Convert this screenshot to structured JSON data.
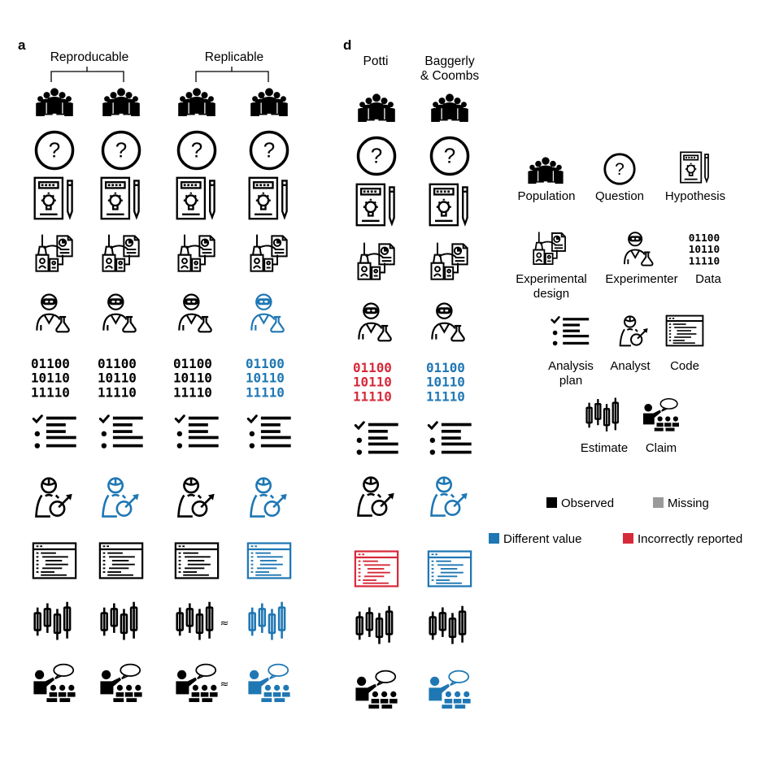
{
  "colors": {
    "observed": "#000000",
    "missing": "#9a9a9a",
    "different": "#1f77b4",
    "incorrect": "#d62a3a"
  },
  "panel_a": {
    "letter": "a",
    "group_left": "Reproducable",
    "group_right": "Replicable",
    "columns": [
      [
        "observed",
        "observed",
        "observed",
        "observed",
        "observed",
        "observed",
        "observed",
        "observed",
        "observed",
        "observed",
        "observed"
      ],
      [
        "observed",
        "observed",
        "observed",
        "observed",
        "observed",
        "observed",
        "observed",
        "different",
        "observed",
        "observed",
        "observed"
      ],
      [
        "observed",
        "observed",
        "observed",
        "observed",
        "observed",
        "observed",
        "observed",
        "observed",
        "observed",
        "observed",
        "observed"
      ],
      [
        "observed",
        "observed",
        "observed",
        "observed",
        "different",
        "different",
        "observed",
        "different",
        "different",
        "different",
        "different"
      ]
    ],
    "approx_rows": [
      9,
      10
    ],
    "approx_symbol": "≈"
  },
  "panel_d": {
    "letter": "d",
    "col1_header": "Potti",
    "col2_header_line1": "Baggerly",
    "col2_header_line2": "& Coombs",
    "columns": [
      [
        "observed",
        "observed",
        "observed",
        "observed",
        "observed",
        "incorrect",
        "observed",
        "observed",
        "incorrect",
        "observed",
        "observed"
      ],
      [
        "observed",
        "observed",
        "observed",
        "observed",
        "observed",
        "different",
        "observed",
        "different",
        "different",
        "observed",
        "different"
      ]
    ]
  },
  "icon_rows": [
    "population",
    "question",
    "hypothesis",
    "experimental-design",
    "experimenter",
    "data",
    "analysis-plan",
    "analyst",
    "code",
    "estimate",
    "claim"
  ],
  "icon_legend": {
    "population": "Population",
    "question": "Question",
    "hypothesis": "Hypothesis",
    "experimental_design_line1": "Experimental",
    "experimental_design_line2": "design",
    "experimenter": "Experimenter",
    "data": "Data",
    "analysis_plan_line1": "Analysis",
    "analysis_plan_line2": "plan",
    "analyst": "Analyst",
    "code": "Code",
    "estimate": "Estimate",
    "claim": "Claim"
  },
  "data_bits": [
    "01100",
    "10110",
    "11110"
  ],
  "color_legend": {
    "observed": "Observed",
    "missing": "Missing",
    "different": "Different value",
    "incorrect": "Incorrectly reported"
  }
}
